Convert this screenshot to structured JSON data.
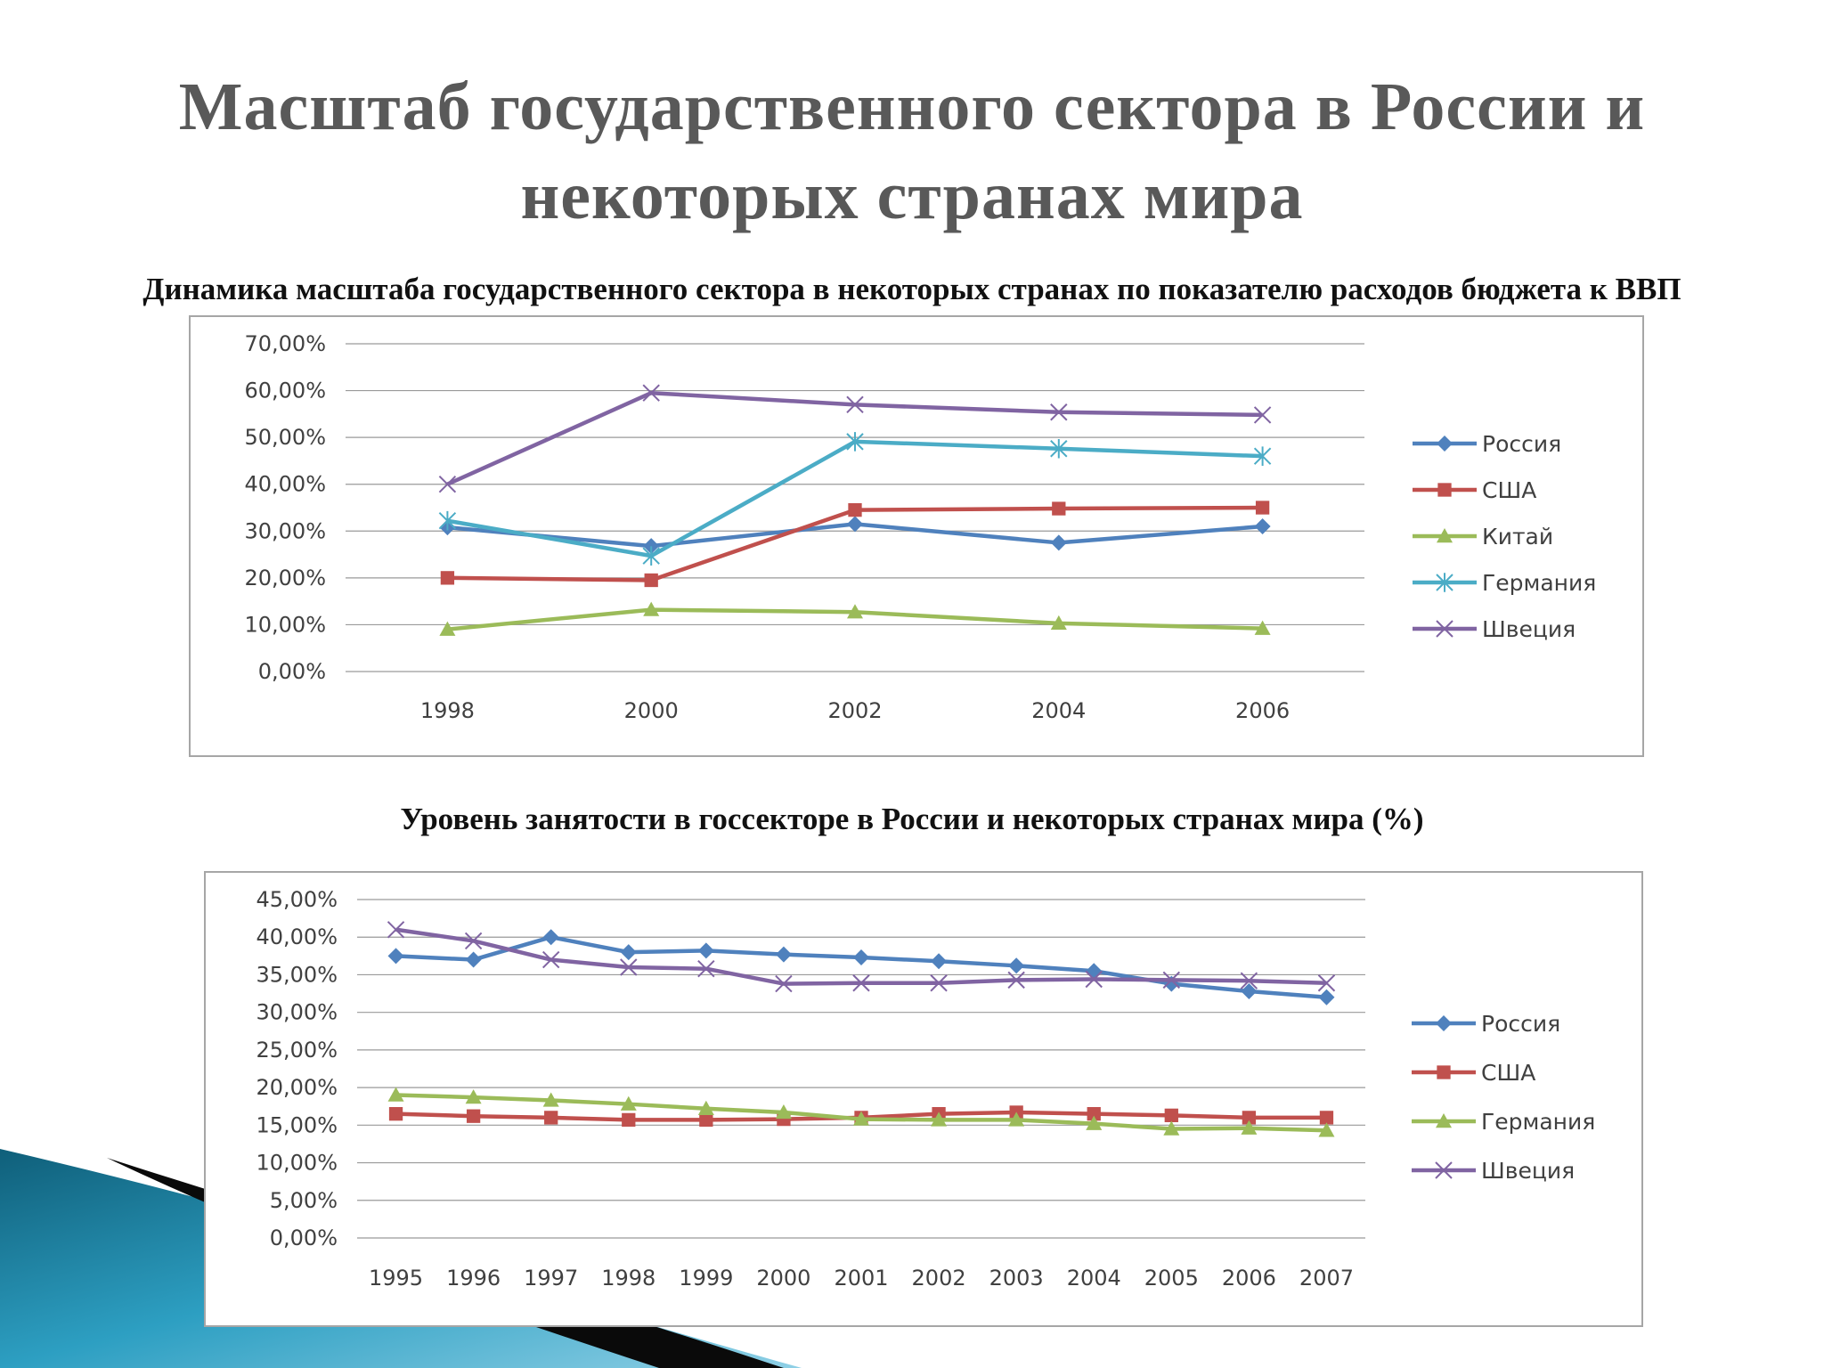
{
  "slide": {
    "title_line1": "Масштаб государственного сектора в России и",
    "title_line2": "некоторых странах мира"
  },
  "colors": {
    "russia": "#4f81bd",
    "usa": "#c0504d",
    "china": "#9bbb59",
    "germany_chart1": "#4bacc6",
    "germany_chart2": "#9bbb59",
    "sweden": "#8064a2"
  },
  "chart_data": [
    {
      "type": "line",
      "title": "Динамика масштаба государственного сектора в некоторых странах по показателю расходов бюджета к ВВП",
      "xlabel": "",
      "ylabel": "",
      "x": [
        "1998",
        "2000",
        "2002",
        "2004",
        "2006"
      ],
      "ylim": [
        0,
        70
      ],
      "ytick_step": 10,
      "ytick_labels": [
        "0,00%",
        "10,00%",
        "20,00%",
        "30,00%",
        "40,00%",
        "50,00%",
        "60,00%",
        "70,00%"
      ],
      "grid": true,
      "legend_position": "right",
      "series": [
        {
          "name": "Россия",
          "color": "#4f81bd",
          "marker": "diamond",
          "values": [
            30.8,
            26.8,
            31.5,
            27.5,
            31.0
          ]
        },
        {
          "name": "США",
          "color": "#c0504d",
          "marker": "square",
          "values": [
            20.0,
            19.5,
            34.5,
            34.8,
            35.0
          ]
        },
        {
          "name": "Китай",
          "color": "#9bbb59",
          "marker": "triangle",
          "values": [
            9.0,
            13.2,
            12.7,
            10.3,
            9.2
          ]
        },
        {
          "name": "Германия",
          "color": "#4bacc6",
          "marker": "asterisk",
          "values": [
            32.2,
            24.7,
            49.1,
            47.6,
            46.0
          ]
        },
        {
          "name": "Швеция",
          "color": "#8064a2",
          "marker": "x",
          "values": [
            40.0,
            59.5,
            57.0,
            55.4,
            54.8
          ]
        }
      ]
    },
    {
      "type": "line",
      "title": "Уровень занятости в госсекторе в России и некоторых странах мира (%)",
      "xlabel": "",
      "ylabel": "",
      "x": [
        "1995",
        "1996",
        "1997",
        "1998",
        "1999",
        "2000",
        "2001",
        "2002",
        "2003",
        "2004",
        "2005",
        "2006",
        "2007"
      ],
      "ylim": [
        0,
        45
      ],
      "ytick_step": 5,
      "ytick_labels": [
        "0,00%",
        "5,00%",
        "10,00%",
        "15,00%",
        "20,00%",
        "25,00%",
        "30,00%",
        "35,00%",
        "40,00%",
        "45,00%"
      ],
      "grid": true,
      "legend_position": "right",
      "series": [
        {
          "name": "Россия",
          "color": "#4f81bd",
          "marker": "diamond",
          "values": [
            37.5,
            37.0,
            40.0,
            38.0,
            38.2,
            37.7,
            37.3,
            36.8,
            36.2,
            35.5,
            33.8,
            32.8,
            32.0
          ]
        },
        {
          "name": "США",
          "color": "#c0504d",
          "marker": "square",
          "values": [
            16.5,
            16.2,
            16.0,
            15.7,
            15.7,
            15.8,
            16.0,
            16.5,
            16.7,
            16.5,
            16.3,
            16.0,
            16.0
          ]
        },
        {
          "name": "Германия",
          "color": "#9bbb59",
          "marker": "triangle",
          "values": [
            19.0,
            18.7,
            18.3,
            17.8,
            17.2,
            16.7,
            15.8,
            15.7,
            15.7,
            15.2,
            14.5,
            14.6,
            14.3
          ]
        },
        {
          "name": "Швеция",
          "color": "#8064a2",
          "marker": "x",
          "values": [
            41.0,
            39.5,
            37.0,
            36.0,
            35.8,
            33.8,
            33.9,
            33.9,
            34.3,
            34.4,
            34.3,
            34.2,
            33.9
          ]
        }
      ]
    }
  ]
}
